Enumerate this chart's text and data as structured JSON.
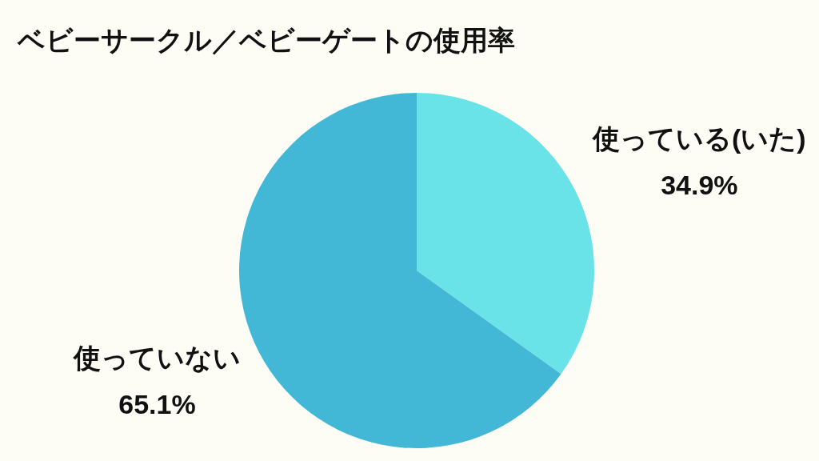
{
  "chart_data": {
    "type": "pie",
    "title": "ベビーサークル／ベビーゲートの使用率",
    "categories": [
      "使っている(いた)",
      "使っていない"
    ],
    "values": [
      34.9,
      65.1
    ],
    "value_labels": [
      "34.9%",
      "65.1%"
    ],
    "colors": [
      "#6ae3e8",
      "#43b7d6"
    ]
  }
}
